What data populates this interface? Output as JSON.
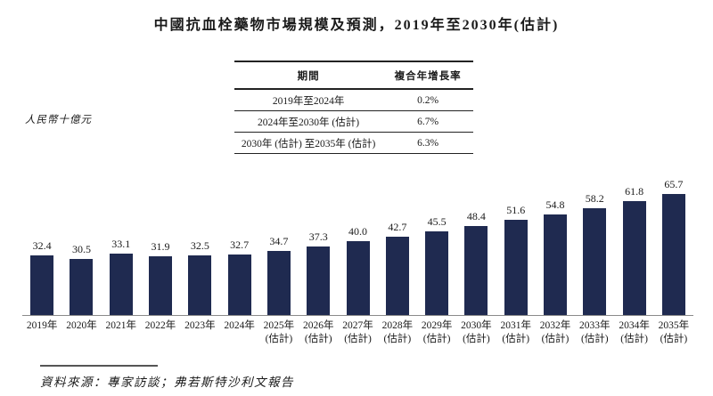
{
  "title": "中國抗血栓藥物市場規模及預測，2019年至2030年(估計)",
  "y_axis_label": "人民幣十億元",
  "source_note": "資料來源：專家訪談；弗若斯特沙利文報告",
  "cagr_table": {
    "headers": [
      "期間",
      "複合年增長率"
    ],
    "rows": [
      {
        "period": "2019年至2024年",
        "cagr": "0.2%"
      },
      {
        "period": "2024年至2030年 (估計)",
        "cagr": "6.7%"
      },
      {
        "period": "2030年 (估計) 至2035年 (估計)",
        "cagr": "6.3%"
      }
    ]
  },
  "chart_data": {
    "type": "bar",
    "title": "中國抗血栓藥物市場規模及預測，2019年至2030年(估計)",
    "ylabel": "人民幣十億元",
    "xlabel": "",
    "grid": false,
    "legend": false,
    "value_labels_shown": true,
    "bar_color": "#1f2a50",
    "axis_line_color": "#8a8a8a",
    "categories": [
      {
        "year": "2019年",
        "note": ""
      },
      {
        "year": "2020年",
        "note": ""
      },
      {
        "year": "2021年",
        "note": ""
      },
      {
        "year": "2022年",
        "note": ""
      },
      {
        "year": "2023年",
        "note": ""
      },
      {
        "year": "2024年",
        "note": ""
      },
      {
        "year": "2025年",
        "note": "(估計)"
      },
      {
        "year": "2026年",
        "note": "(估計)"
      },
      {
        "year": "2027年",
        "note": "(估計)"
      },
      {
        "year": "2028年",
        "note": "(估計)"
      },
      {
        "year": "2029年",
        "note": "(估計)"
      },
      {
        "year": "2030年",
        "note": "(估計)"
      },
      {
        "year": "2031年",
        "note": "(估計)"
      },
      {
        "year": "2032年",
        "note": "(估計)"
      },
      {
        "year": "2033年",
        "note": "(估計)"
      },
      {
        "year": "2034年",
        "note": "(估計)"
      },
      {
        "year": "2035年",
        "note": "(估計)"
      }
    ],
    "values": [
      32.4,
      30.5,
      33.1,
      31.9,
      32.5,
      32.7,
      34.7,
      37.3,
      40.0,
      42.7,
      45.5,
      48.4,
      51.6,
      54.8,
      58.2,
      61.8,
      65.7
    ]
  }
}
